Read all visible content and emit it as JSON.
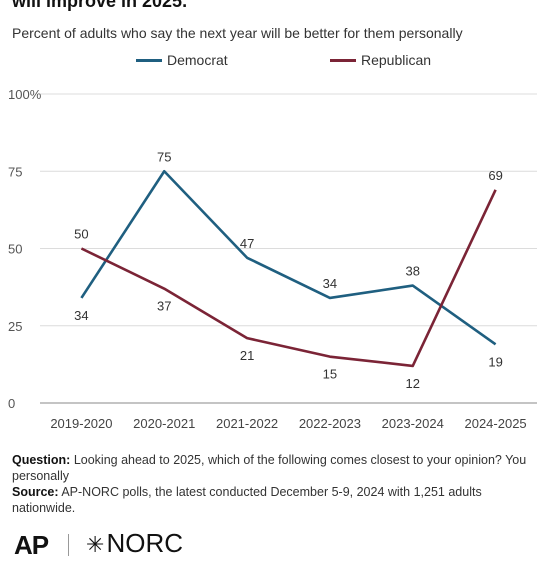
{
  "title": "will improve in 2025.",
  "subtitle": "Percent of adults who say the next year will be better for them personally",
  "colors": {
    "democrat": "#1f5f80",
    "republican": "#7b2436",
    "grid": "#dcdcdc",
    "axis": "#888888"
  },
  "chart_data": {
    "type": "line",
    "title": "will improve in 2025.",
    "subtitle": "Percent of adults who say the next year will be better for them personally",
    "categories": [
      "2019-2020",
      "2020-2021",
      "2021-2022",
      "2022-2023",
      "2023-2024",
      "2024-2025"
    ],
    "series": [
      {
        "name": "Democrat",
        "values": [
          34,
          75,
          47,
          34,
          38,
          19
        ]
      },
      {
        "name": "Republican",
        "values": [
          50,
          37,
          21,
          15,
          12,
          69
        ]
      }
    ],
    "ylim": [
      0,
      100
    ],
    "yticks": [
      "0",
      "25",
      "50",
      "75",
      "100%"
    ],
    "grid": true,
    "legend": "top"
  },
  "notes": {
    "question_label": "Question:",
    "question_text": " Looking ahead to 2025, which of the following comes closest to your opinion? You personally",
    "source_label": "Source:",
    "source_text": " AP-NORC polls, the latest conducted December 5-9, 2024 with 1,251 adults nationwide."
  },
  "logos": {
    "ap": "AP",
    "norc": "NORC"
  }
}
